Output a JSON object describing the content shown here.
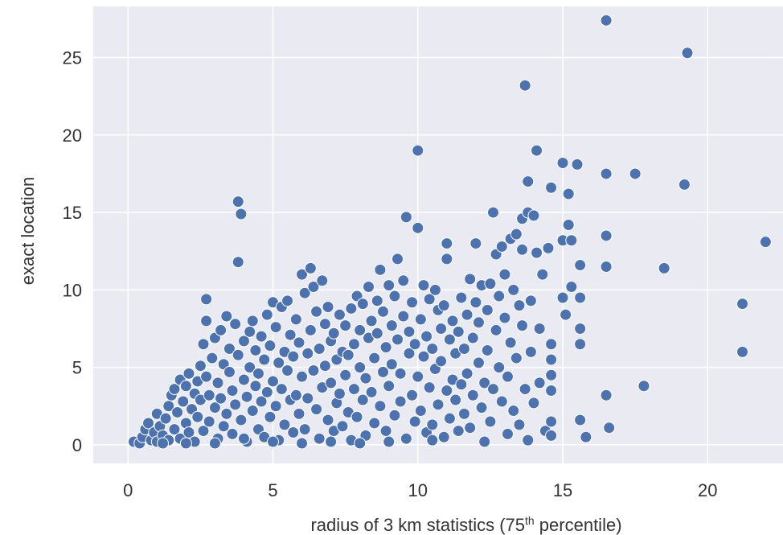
{
  "chart_data": {
    "type": "scatter",
    "title": "",
    "xlabel": "radius of 3 km statistics (75",
    "xlabel_sup": "th",
    "xlabel_suffix": " percentile)",
    "ylabel": "exact location",
    "xlim": [
      -1.2,
      22.6
    ],
    "ylim": [
      -1.2,
      28.3
    ],
    "xticks": [
      0,
      5,
      10,
      15,
      20
    ],
    "yticks": [
      0,
      5,
      10,
      15,
      20,
      25
    ],
    "grid": true,
    "colors": {
      "background": "#eaeaf2",
      "grid": "#ffffff",
      "point": "#4c72b0"
    },
    "series": [
      {
        "values": [
          [
            0.2,
            0.2
          ],
          [
            0.4,
            0.1
          ],
          [
            0.5,
            0.5
          ],
          [
            0.6,
            1.0
          ],
          [
            0.7,
            1.4
          ],
          [
            0.8,
            0.3
          ],
          [
            0.9,
            0.8
          ],
          [
            1.0,
            2.0
          ],
          [
            1.0,
            0.2
          ],
          [
            1.1,
            1.2
          ],
          [
            1.2,
            0.6
          ],
          [
            1.3,
            1.7
          ],
          [
            1.4,
            0.3
          ],
          [
            1.4,
            2.5
          ],
          [
            1.5,
            3.2
          ],
          [
            1.6,
            1.0
          ],
          [
            1.6,
            3.6
          ],
          [
            1.7,
            2.1
          ],
          [
            1.8,
            0.4
          ],
          [
            1.8,
            4.2
          ],
          [
            1.9,
            2.8
          ],
          [
            2.0,
            1.4
          ],
          [
            2.0,
            3.8
          ],
          [
            2.1,
            0.8
          ],
          [
            2.1,
            4.6
          ],
          [
            2.2,
            2.3
          ],
          [
            2.3,
            3.3
          ],
          [
            2.3,
            0.2
          ],
          [
            2.4,
            1.8
          ],
          [
            2.4,
            4.1
          ],
          [
            2.5,
            5.1
          ],
          [
            2.5,
            2.9
          ],
          [
            2.6,
            6.5
          ],
          [
            2.6,
            0.9
          ],
          [
            2.7,
            8.0
          ],
          [
            2.7,
            9.4
          ],
          [
            2.7,
            4.4
          ],
          [
            2.8,
            3.2
          ],
          [
            2.8,
            1.5
          ],
          [
            2.9,
            5.6
          ],
          [
            3.0,
            2.4
          ],
          [
            3.0,
            6.9
          ],
          [
            3.1,
            0.4
          ],
          [
            3.1,
            4.0
          ],
          [
            3.2,
            3.0
          ],
          [
            3.2,
            7.4
          ],
          [
            3.3,
            1.2
          ],
          [
            3.3,
            5.2
          ],
          [
            3.4,
            8.3
          ],
          [
            3.4,
            2.0
          ],
          [
            3.5,
            4.7
          ],
          [
            3.5,
            6.2
          ],
          [
            3.6,
            0.7
          ],
          [
            3.6,
            3.5
          ],
          [
            3.7,
            7.8
          ],
          [
            3.7,
            2.6
          ],
          [
            3.8,
            11.8
          ],
          [
            3.8,
            15.7
          ],
          [
            3.8,
            5.8
          ],
          [
            3.9,
            14.9
          ],
          [
            3.9,
            1.6
          ],
          [
            4.0,
            4.2
          ],
          [
            4.0,
            6.7
          ],
          [
            4.1,
            3.1
          ],
          [
            4.1,
            0.2
          ],
          [
            4.2,
            7.3
          ],
          [
            4.2,
            5.0
          ],
          [
            4.3,
            2.2
          ],
          [
            4.3,
            8.0
          ],
          [
            4.4,
            3.8
          ],
          [
            4.4,
            6.1
          ],
          [
            4.5,
            1.0
          ],
          [
            4.5,
            4.6
          ],
          [
            4.6,
            7.0
          ],
          [
            4.6,
            2.8
          ],
          [
            4.7,
            5.5
          ],
          [
            4.7,
            0.5
          ],
          [
            4.8,
            3.4
          ],
          [
            4.8,
            8.4
          ],
          [
            4.9,
            6.4
          ],
          [
            4.9,
            1.8
          ],
          [
            5.0,
            4.1
          ],
          [
            5.0,
            9.2
          ],
          [
            5.1,
            2.5
          ],
          [
            5.1,
            7.6
          ],
          [
            5.2,
            5.3
          ],
          [
            5.2,
            0.3
          ],
          [
            5.3,
            3.6
          ],
          [
            5.3,
            8.9
          ],
          [
            5.4,
            6.0
          ],
          [
            5.4,
            1.3
          ],
          [
            5.5,
            4.8
          ],
          [
            5.5,
            9.3
          ],
          [
            5.6,
            2.9
          ],
          [
            5.6,
            7.1
          ],
          [
            5.7,
            5.7
          ],
          [
            5.7,
            0.8
          ],
          [
            5.8,
            3.2
          ],
          [
            5.8,
            8.1
          ],
          [
            5.9,
            6.6
          ],
          [
            5.9,
            2.0
          ],
          [
            6.0,
            4.4
          ],
          [
            6.0,
            11.0
          ],
          [
            6.1,
            9.8
          ],
          [
            6.1,
            1.0
          ],
          [
            6.2,
            5.9
          ],
          [
            6.2,
            3.0
          ],
          [
            6.3,
            11.4
          ],
          [
            6.3,
            7.4
          ],
          [
            6.4,
            10.2
          ],
          [
            6.4,
            4.8
          ],
          [
            6.5,
            2.3
          ],
          [
            6.5,
            8.6
          ],
          [
            6.6,
            6.2
          ],
          [
            6.6,
            0.4
          ],
          [
            6.7,
            10.6
          ],
          [
            6.7,
            3.7
          ],
          [
            6.8,
            7.8
          ],
          [
            6.8,
            5.1
          ],
          [
            6.9,
            1.6
          ],
          [
            6.9,
            8.9
          ],
          [
            7.0,
            6.7
          ],
          [
            7.0,
            4.0
          ],
          [
            7.1,
            0.9
          ],
          [
            7.1,
            7.2
          ],
          [
            7.2,
            2.7
          ],
          [
            7.2,
            5.5
          ],
          [
            7.3,
            8.4
          ],
          [
            7.3,
            3.3
          ],
          [
            7.4,
            6.0
          ],
          [
            7.4,
            1.2
          ],
          [
            7.5,
            4.5
          ],
          [
            7.5,
            7.7
          ],
          [
            7.6,
            2.1
          ],
          [
            7.6,
            5.8
          ],
          [
            7.7,
            0.3
          ],
          [
            7.7,
            8.8
          ],
          [
            7.8,
            3.6
          ],
          [
            7.8,
            6.5
          ],
          [
            7.9,
            9.6
          ],
          [
            7.9,
            1.8
          ],
          [
            8.0,
            5.0
          ],
          [
            8.0,
            7.4
          ],
          [
            8.1,
            2.9
          ],
          [
            8.1,
            9.1
          ],
          [
            8.2,
            0.6
          ],
          [
            8.2,
            4.3
          ],
          [
            8.3,
            6.9
          ],
          [
            8.3,
            10.2
          ],
          [
            8.4,
            3.4
          ],
          [
            8.4,
            8.0
          ],
          [
            8.5,
            1.4
          ],
          [
            8.5,
            5.6
          ],
          [
            8.6,
            9.3
          ],
          [
            8.6,
            7.2
          ],
          [
            8.7,
            11.3
          ],
          [
            8.7,
            2.5
          ],
          [
            8.8,
            4.7
          ],
          [
            8.8,
            8.6
          ],
          [
            8.9,
            6.3
          ],
          [
            8.9,
            0.9
          ],
          [
            9.0,
            10.3
          ],
          [
            9.0,
            3.8
          ],
          [
            9.1,
            7.7
          ],
          [
            9.1,
            5.2
          ],
          [
            9.2,
            1.9
          ],
          [
            9.2,
            9.6
          ],
          [
            9.3,
            12.0
          ],
          [
            9.3,
            6.8
          ],
          [
            9.4,
            2.8
          ],
          [
            9.4,
            4.6
          ],
          [
            9.5,
            8.3
          ],
          [
            9.5,
            10.6
          ],
          [
            9.6,
            14.7
          ],
          [
            9.6,
            0.4
          ],
          [
            9.7,
            5.9
          ],
          [
            9.7,
            7.3
          ],
          [
            9.8,
            3.2
          ],
          [
            9.8,
            9.2
          ],
          [
            9.9,
            1.5
          ],
          [
            9.9,
            6.5
          ],
          [
            10.0,
            14.0
          ],
          [
            10.0,
            19.0
          ],
          [
            10.0,
            4.4
          ],
          [
            10.1,
            8.1
          ],
          [
            10.1,
            2.2
          ],
          [
            10.2,
            10.3
          ],
          [
            10.2,
            5.7
          ],
          [
            10.3,
            0.8
          ],
          [
            10.3,
            7.0
          ],
          [
            10.4,
            9.4
          ],
          [
            10.4,
            3.7
          ],
          [
            10.5,
            6.2
          ],
          [
            10.5,
            1.3
          ],
          [
            10.6,
            10.0
          ],
          [
            10.6,
            4.9
          ],
          [
            10.7,
            8.7
          ],
          [
            10.7,
            2.6
          ],
          [
            10.8,
            7.5
          ],
          [
            10.8,
            5.4
          ],
          [
            10.9,
            0.5
          ],
          [
            10.9,
            9.0
          ],
          [
            11.0,
            12.0
          ],
          [
            11.0,
            13.0
          ],
          [
            11.0,
            3.5
          ],
          [
            11.1,
            6.8
          ],
          [
            11.1,
            1.7
          ],
          [
            11.2,
            4.2
          ],
          [
            11.2,
            8.0
          ],
          [
            11.3,
            2.9
          ],
          [
            11.3,
            5.9
          ],
          [
            11.4,
            7.3
          ],
          [
            11.4,
            0.9
          ],
          [
            11.5,
            3.9
          ],
          [
            11.5,
            9.5
          ],
          [
            11.6,
            6.2
          ],
          [
            11.6,
            2.0
          ],
          [
            11.7,
            8.4
          ],
          [
            11.7,
            4.6
          ],
          [
            11.8,
            10.7
          ],
          [
            11.8,
            1.1
          ],
          [
            11.9,
            6.9
          ],
          [
            11.9,
            3.2
          ],
          [
            12.0,
            13.0
          ],
          [
            12.0,
            9.2
          ],
          [
            12.1,
            5.3
          ],
          [
            12.1,
            7.9
          ],
          [
            12.2,
            2.4
          ],
          [
            12.2,
            10.3
          ],
          [
            12.3,
            0.2
          ],
          [
            12.3,
            4.0
          ],
          [
            12.4,
            8.7
          ],
          [
            12.4,
            6.1
          ],
          [
            12.5,
            10.4
          ],
          [
            12.5,
            1.5
          ],
          [
            12.6,
            15.0
          ],
          [
            12.6,
            3.6
          ],
          [
            12.7,
            7.4
          ],
          [
            12.7,
            12.3
          ],
          [
            12.8,
            5.0
          ],
          [
            12.8,
            9.6
          ],
          [
            12.9,
            2.8
          ],
          [
            12.9,
            12.8
          ],
          [
            13.0,
            11.0
          ],
          [
            13.0,
            8.2
          ],
          [
            13.1,
            4.4
          ],
          [
            13.1,
            0.7
          ],
          [
            13.2,
            13.3
          ],
          [
            13.2,
            6.6
          ],
          [
            13.3,
            10.0
          ],
          [
            13.3,
            2.2
          ],
          [
            13.4,
            13.6
          ],
          [
            13.4,
            5.6
          ],
          [
            13.5,
            9.0
          ],
          [
            13.5,
            1.3
          ],
          [
            13.6,
            12.6
          ],
          [
            13.6,
            7.7
          ],
          [
            13.6,
            14.6
          ],
          [
            13.7,
            23.2
          ],
          [
            13.7,
            3.6
          ],
          [
            13.8,
            15.0
          ],
          [
            13.8,
            17.0
          ],
          [
            13.8,
            0.3
          ],
          [
            13.9,
            9.3
          ],
          [
            13.9,
            6.0
          ],
          [
            14.0,
            14.8
          ],
          [
            14.0,
            2.7
          ],
          [
            14.1,
            19.0
          ],
          [
            14.1,
            12.4
          ],
          [
            14.2,
            4.0
          ],
          [
            14.2,
            7.5
          ],
          [
            14.3,
            11.0
          ],
          [
            14.4,
            0.9
          ],
          [
            14.5,
            12.7
          ],
          [
            14.6,
            16.6
          ],
          [
            14.6,
            6.5
          ],
          [
            14.6,
            5.5
          ],
          [
            14.6,
            4.5
          ],
          [
            14.6,
            1.5
          ],
          [
            14.6,
            0.6
          ],
          [
            14.6,
            3.5
          ],
          [
            15.0,
            13.2
          ],
          [
            15.0,
            9.5
          ],
          [
            15.0,
            18.2
          ],
          [
            15.1,
            8.4
          ],
          [
            15.2,
            16.2
          ],
          [
            15.2,
            14.2
          ],
          [
            15.3,
            10.2
          ],
          [
            15.3,
            13.2
          ],
          [
            15.5,
            18.1
          ],
          [
            15.6,
            11.6
          ],
          [
            15.6,
            9.5
          ],
          [
            15.6,
            7.5
          ],
          [
            15.6,
            6.5
          ],
          [
            15.6,
            1.6
          ],
          [
            15.8,
            0.5
          ],
          [
            16.5,
            27.4
          ],
          [
            16.5,
            17.5
          ],
          [
            16.5,
            13.5
          ],
          [
            16.5,
            11.5
          ],
          [
            16.5,
            3.2
          ],
          [
            16.6,
            1.1
          ],
          [
            17.5,
            17.5
          ],
          [
            17.8,
            3.8
          ],
          [
            18.5,
            11.4
          ],
          [
            19.3,
            25.3
          ],
          [
            19.2,
            16.8
          ],
          [
            21.2,
            9.1
          ],
          [
            21.2,
            6.0
          ],
          [
            22.0,
            13.1
          ],
          [
            3.0,
            0.1
          ],
          [
            4.0,
            0.4
          ],
          [
            5.0,
            0.2
          ],
          [
            6.0,
            0.1
          ],
          [
            7.0,
            0.2
          ],
          [
            8.0,
            0.1
          ],
          [
            9.0,
            0.2
          ],
          [
            10.5,
            0.3
          ],
          [
            2.0,
            0.1
          ],
          [
            1.2,
            0.1
          ]
        ]
      }
    ]
  }
}
